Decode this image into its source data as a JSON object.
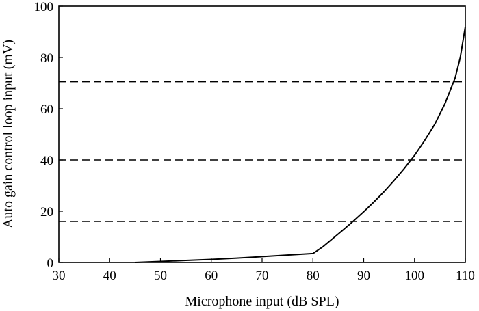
{
  "chart_data": {
    "type": "line",
    "xlabel": "Microphone input (dB SPL)",
    "ylabel": "Auto gain control loop input (mV)",
    "xlim": [
      30,
      110
    ],
    "ylim": [
      0,
      100
    ],
    "xticks": [
      "30",
      "40",
      "50",
      "60",
      "70",
      "80",
      "90",
      "100",
      "110"
    ],
    "yticks": [
      "0",
      "20",
      "40",
      "60",
      "80",
      "100"
    ],
    "grid": false,
    "series": [
      {
        "x": [
          45,
          50,
          55,
          60,
          65,
          70,
          75,
          80,
          82,
          84,
          86,
          88,
          90,
          92,
          94,
          96,
          98,
          100,
          102,
          104,
          106,
          108,
          109,
          110
        ],
        "y": [
          0,
          0.4,
          0.8,
          1.2,
          1.7,
          2.3,
          2.9,
          3.5,
          6.2,
          9.5,
          12.8,
          16.2,
          19.8,
          23.6,
          27.6,
          32,
          36.7,
          41.8,
          47.6,
          54,
          62,
          72,
          80,
          92
        ],
        "color": "#000000"
      }
    ],
    "reference_lines": [
      {
        "y": 70.5,
        "style": "dashed"
      },
      {
        "y": 40,
        "style": "dashed"
      },
      {
        "y": 16,
        "style": "dashed"
      }
    ]
  }
}
